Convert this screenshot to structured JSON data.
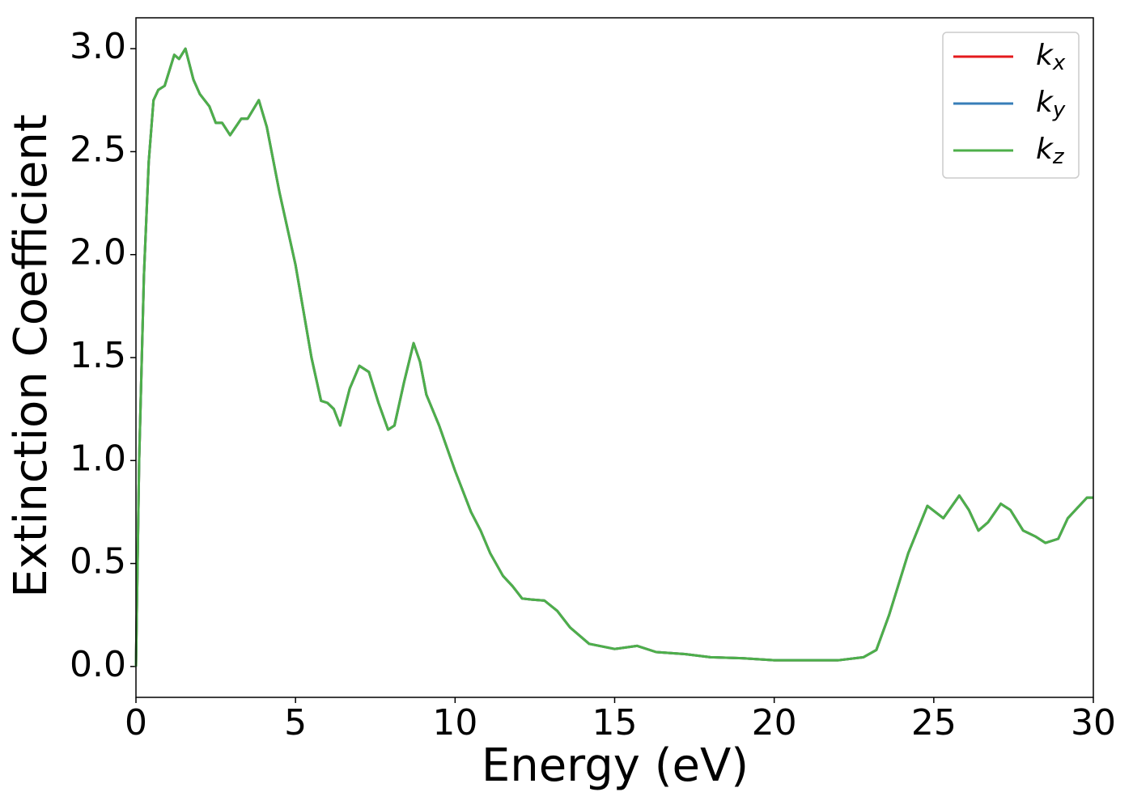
{
  "chart_data": {
    "type": "line",
    "xlabel": "Energy (eV)",
    "ylabel": "Extinction Coefficient",
    "x": [
      0,
      0.1,
      0.25,
      0.4,
      0.55,
      0.7,
      0.9,
      1.2,
      1.35,
      1.55,
      1.8,
      2.0,
      2.3,
      2.5,
      2.7,
      2.95,
      3.3,
      3.5,
      3.85,
      4.1,
      4.5,
      5.0,
      5.5,
      5.8,
      6.0,
      6.2,
      6.4,
      6.7,
      7.0,
      7.3,
      7.6,
      7.9,
      8.1,
      8.4,
      8.7,
      8.9,
      9.1,
      9.5,
      10.0,
      10.5,
      10.8,
      11.1,
      11.5,
      11.8,
      12.1,
      12.4,
      12.8,
      13.2,
      13.6,
      14.2,
      15.0,
      15.7,
      16.3,
      17.2,
      18.0,
      19.0,
      20.0,
      21.0,
      22.0,
      22.8,
      23.2,
      23.6,
      24.2,
      24.8,
      25.3,
      25.8,
      26.1,
      26.4,
      26.7,
      27.1,
      27.4,
      27.8,
      28.2,
      28.5,
      28.9,
      29.2,
      29.8,
      30
    ],
    "series": [
      {
        "name": "k_x",
        "color": "#e41a1c",
        "values": [
          0.0,
          1.0,
          1.9,
          2.45,
          2.75,
          2.8,
          2.82,
          2.97,
          2.95,
          3.0,
          2.85,
          2.78,
          2.72,
          2.64,
          2.64,
          2.58,
          2.66,
          2.66,
          2.75,
          2.62,
          2.3,
          1.95,
          1.5,
          1.29,
          1.28,
          1.25,
          1.17,
          1.35,
          1.46,
          1.43,
          1.28,
          1.15,
          1.17,
          1.38,
          1.57,
          1.48,
          1.32,
          1.17,
          0.95,
          0.75,
          0.66,
          0.55,
          0.44,
          0.39,
          0.33,
          0.325,
          0.32,
          0.27,
          0.19,
          0.11,
          0.085,
          0.1,
          0.07,
          0.06,
          0.045,
          0.04,
          0.03,
          0.03,
          0.03,
          0.045,
          0.08,
          0.25,
          0.55,
          0.78,
          0.72,
          0.83,
          0.76,
          0.66,
          0.7,
          0.79,
          0.76,
          0.66,
          0.63,
          0.6,
          0.62,
          0.72,
          0.82,
          0.82
        ]
      },
      {
        "name": "k_y",
        "color": "#377eb8",
        "values": [
          0.0,
          1.0,
          1.9,
          2.45,
          2.75,
          2.8,
          2.82,
          2.97,
          2.95,
          3.0,
          2.85,
          2.78,
          2.72,
          2.64,
          2.64,
          2.58,
          2.66,
          2.66,
          2.75,
          2.62,
          2.3,
          1.95,
          1.5,
          1.29,
          1.28,
          1.25,
          1.17,
          1.35,
          1.46,
          1.43,
          1.28,
          1.15,
          1.17,
          1.38,
          1.57,
          1.48,
          1.32,
          1.17,
          0.95,
          0.75,
          0.66,
          0.55,
          0.44,
          0.39,
          0.33,
          0.325,
          0.32,
          0.27,
          0.19,
          0.11,
          0.085,
          0.1,
          0.07,
          0.06,
          0.045,
          0.04,
          0.03,
          0.03,
          0.03,
          0.045,
          0.08,
          0.25,
          0.55,
          0.78,
          0.72,
          0.83,
          0.76,
          0.66,
          0.7,
          0.79,
          0.76,
          0.66,
          0.63,
          0.6,
          0.62,
          0.72,
          0.82,
          0.82
        ]
      },
      {
        "name": "k_z",
        "color": "#4daf4a",
        "values": [
          0.0,
          1.0,
          1.9,
          2.45,
          2.75,
          2.8,
          2.82,
          2.97,
          2.95,
          3.0,
          2.85,
          2.78,
          2.72,
          2.64,
          2.64,
          2.58,
          2.66,
          2.66,
          2.75,
          2.62,
          2.3,
          1.95,
          1.5,
          1.29,
          1.28,
          1.25,
          1.17,
          1.35,
          1.46,
          1.43,
          1.28,
          1.15,
          1.17,
          1.38,
          1.57,
          1.48,
          1.32,
          1.17,
          0.95,
          0.75,
          0.66,
          0.55,
          0.44,
          0.39,
          0.33,
          0.325,
          0.32,
          0.27,
          0.19,
          0.11,
          0.085,
          0.1,
          0.07,
          0.06,
          0.045,
          0.04,
          0.03,
          0.03,
          0.03,
          0.045,
          0.08,
          0.25,
          0.55,
          0.78,
          0.72,
          0.83,
          0.76,
          0.66,
          0.7,
          0.79,
          0.76,
          0.66,
          0.63,
          0.6,
          0.62,
          0.72,
          0.82,
          0.82
        ]
      }
    ],
    "xlim": [
      0,
      30
    ],
    "xticks": [
      0,
      5,
      10,
      15,
      20,
      25,
      30
    ],
    "ylim": [
      -0.15,
      3.15
    ],
    "yticks": [
      {
        "value": 0,
        "label": "0.0"
      },
      0.5,
      {
        "value": 1,
        "label": "1.0"
      },
      1.5,
      {
        "value": 2,
        "label": "2.0"
      },
      2.5,
      {
        "value": 3,
        "label": "3.0"
      }
    ],
    "legend": "upper right",
    "grid": false
  }
}
